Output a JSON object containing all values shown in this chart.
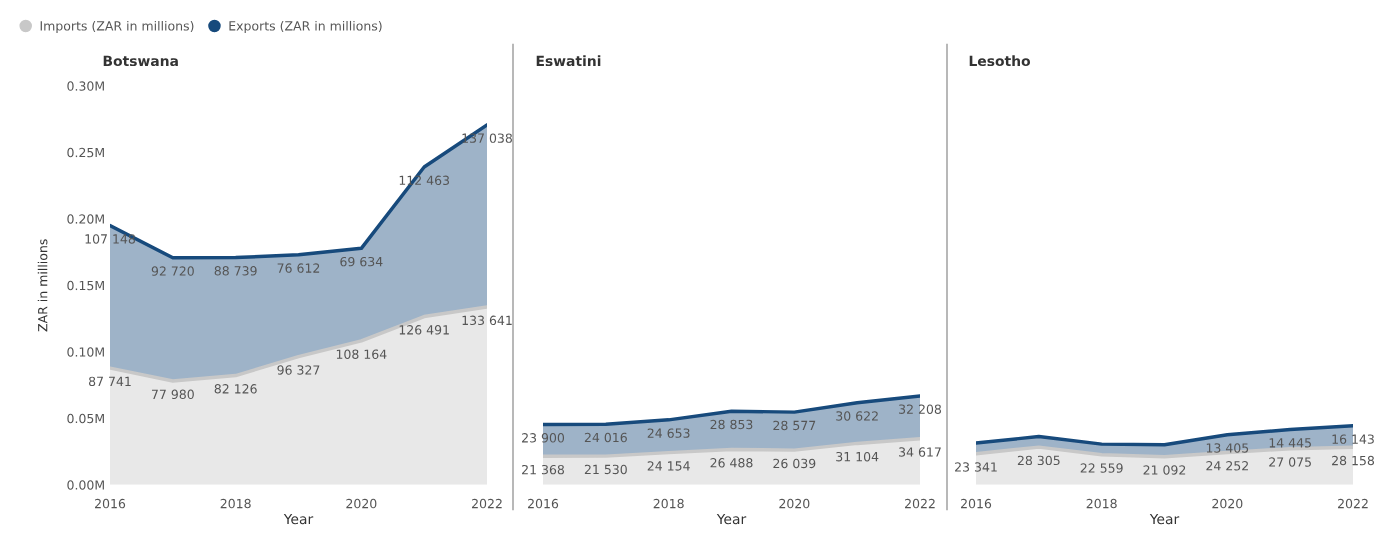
{
  "chart_data": [
    {
      "type": "area",
      "stacked": true,
      "title": "Botswana",
      "xlabel": "Year",
      "ylabel": "ZAR in millions",
      "x": [
        2016,
        2017,
        2018,
        2019,
        2020,
        2021,
        2022
      ],
      "xlim": [
        2016,
        2022
      ],
      "xticks": [
        2016,
        2018,
        2020,
        2022
      ],
      "ylim": [
        0,
        300000
      ],
      "yticks": [
        {
          "value": 0,
          "label": "0.00M"
        },
        {
          "value": 50000,
          "label": "0.05M"
        },
        {
          "value": 100000,
          "label": "0.10M"
        },
        {
          "value": 150000,
          "label": "0.15M"
        },
        {
          "value": 200000,
          "label": "0.20M"
        },
        {
          "value": 250000,
          "label": "0.25M"
        },
        {
          "value": 300000,
          "label": "0.30M"
        }
      ],
      "grid": false,
      "legend": "top left",
      "series": [
        {
          "name": "Imports (ZAR in millions)",
          "color": "#c8c8c8",
          "values": [
            87741,
            77980,
            82126,
            96327,
            108164,
            126491,
            133641
          ],
          "value_labels": [
            "87 741",
            "77 980",
            "82 126",
            "96 327",
            "108 164",
            "126 491",
            "133 641"
          ]
        },
        {
          "name": "Exports (ZAR in millions)",
          "color": "#174a7c",
          "values": [
            107148,
            92720,
            88739,
            76612,
            69634,
            112463,
            137038
          ],
          "value_labels": [
            "107 148",
            "92 720",
            "88 739",
            "76 612",
            "69 634",
            "112 463",
            "137 038"
          ]
        }
      ]
    },
    {
      "type": "area",
      "stacked": true,
      "title": "Eswatini",
      "xlabel": "Year",
      "x": [
        2016,
        2017,
        2018,
        2019,
        2020,
        2021,
        2022
      ],
      "xlim": [
        2016,
        2022
      ],
      "xticks": [
        2016,
        2018,
        2020,
        2022
      ],
      "ylim": [
        0,
        300000
      ],
      "tick_labels": "x",
      "grid": false,
      "series": [
        {
          "color": "#c8c8c8",
          "values": [
            21368,
            21530,
            24154,
            26488,
            26039,
            31104,
            34617
          ],
          "value_labels": [
            "21 368",
            "21 530",
            "24 154",
            "26 488",
            "26 039",
            "31 104",
            "34 617"
          ]
        },
        {
          "color": "#174a7c",
          "values": [
            23900,
            24016,
            24653,
            28853,
            28577,
            30622,
            32208
          ],
          "value_labels": [
            "23 900",
            "24 016",
            "24 653",
            "28 853",
            "28 577",
            "30 622",
            "32 208"
          ]
        }
      ]
    },
    {
      "type": "area",
      "stacked": true,
      "title": "Lesotho",
      "xlabel": "Year",
      "x": [
        2016,
        2017,
        2018,
        2019,
        2020,
        2021,
        2022
      ],
      "xlim": [
        2016,
        2022
      ],
      "xticks": [
        2016,
        2018,
        2020,
        2022
      ],
      "ylim": [
        0,
        300000
      ],
      "tick_labels": "x",
      "grid": false,
      "series": [
        {
          "color": "#c8c8c8",
          "values": [
            23341,
            28305,
            22559,
            21092,
            24252,
            27075,
            28158
          ],
          "value_labels": [
            "23 341",
            "28 305",
            "22 559",
            "21 092",
            "24 252",
            "27 075",
            "28 158"
          ]
        },
        {
          "color": "#174a7c",
          "values": [
            8000,
            8000,
            8000,
            9000,
            13405,
            14445,
            16143
          ],
          "value_labels": [
            null,
            null,
            null,
            null,
            "13 405",
            "14 445",
            "16 143"
          ]
        }
      ]
    }
  ]
}
